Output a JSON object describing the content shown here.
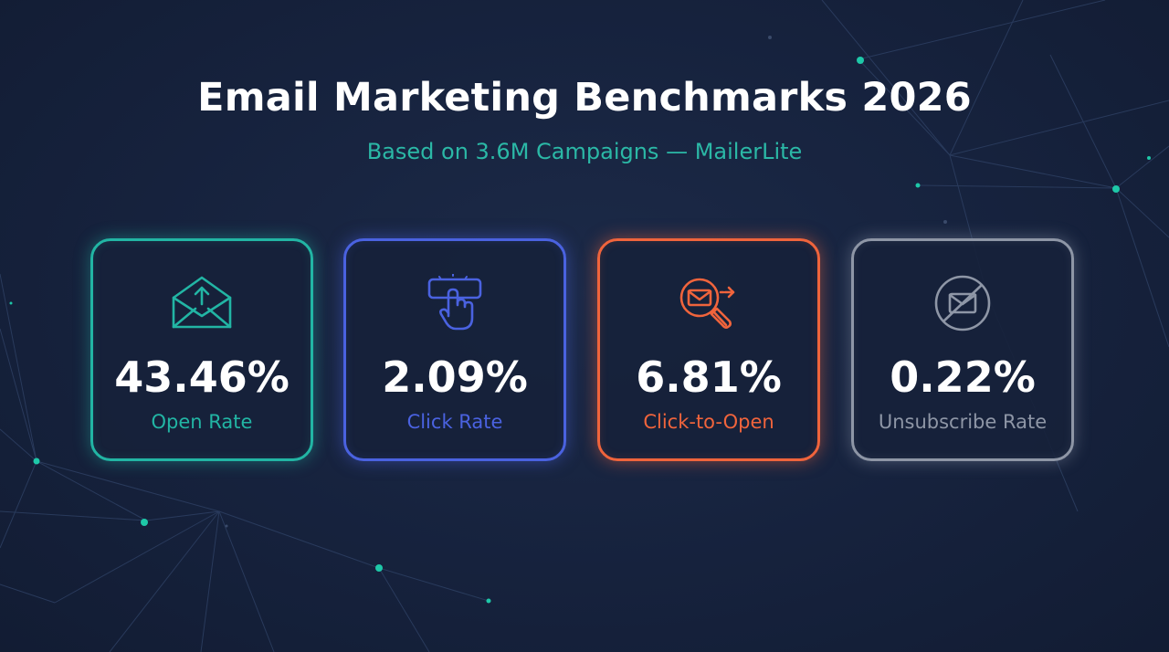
{
  "header": {
    "title": "Email Marketing Benchmarks 2026",
    "subtitle": "Based on 3.6M Campaigns — MailerLite",
    "subtitle_color": "#2bb8a6"
  },
  "cards": [
    {
      "value": "43.46%",
      "label": "Open Rate",
      "color": "#22b5a4",
      "icon": "envelope-upload-icon"
    },
    {
      "value": "2.09%",
      "label": "Click Rate",
      "color": "#4a62e0",
      "icon": "pointer-click-icon"
    },
    {
      "value": "6.81%",
      "label": "Click-to-Open",
      "color": "#f0643c",
      "icon": "envelope-magnifier-icon"
    },
    {
      "value": "0.22%",
      "label": "Unsubscribe Rate",
      "color": "#8e96a6",
      "icon": "envelope-blocked-icon"
    }
  ],
  "background": {
    "color": "#16223d",
    "node_color": "#1ec8a8"
  }
}
